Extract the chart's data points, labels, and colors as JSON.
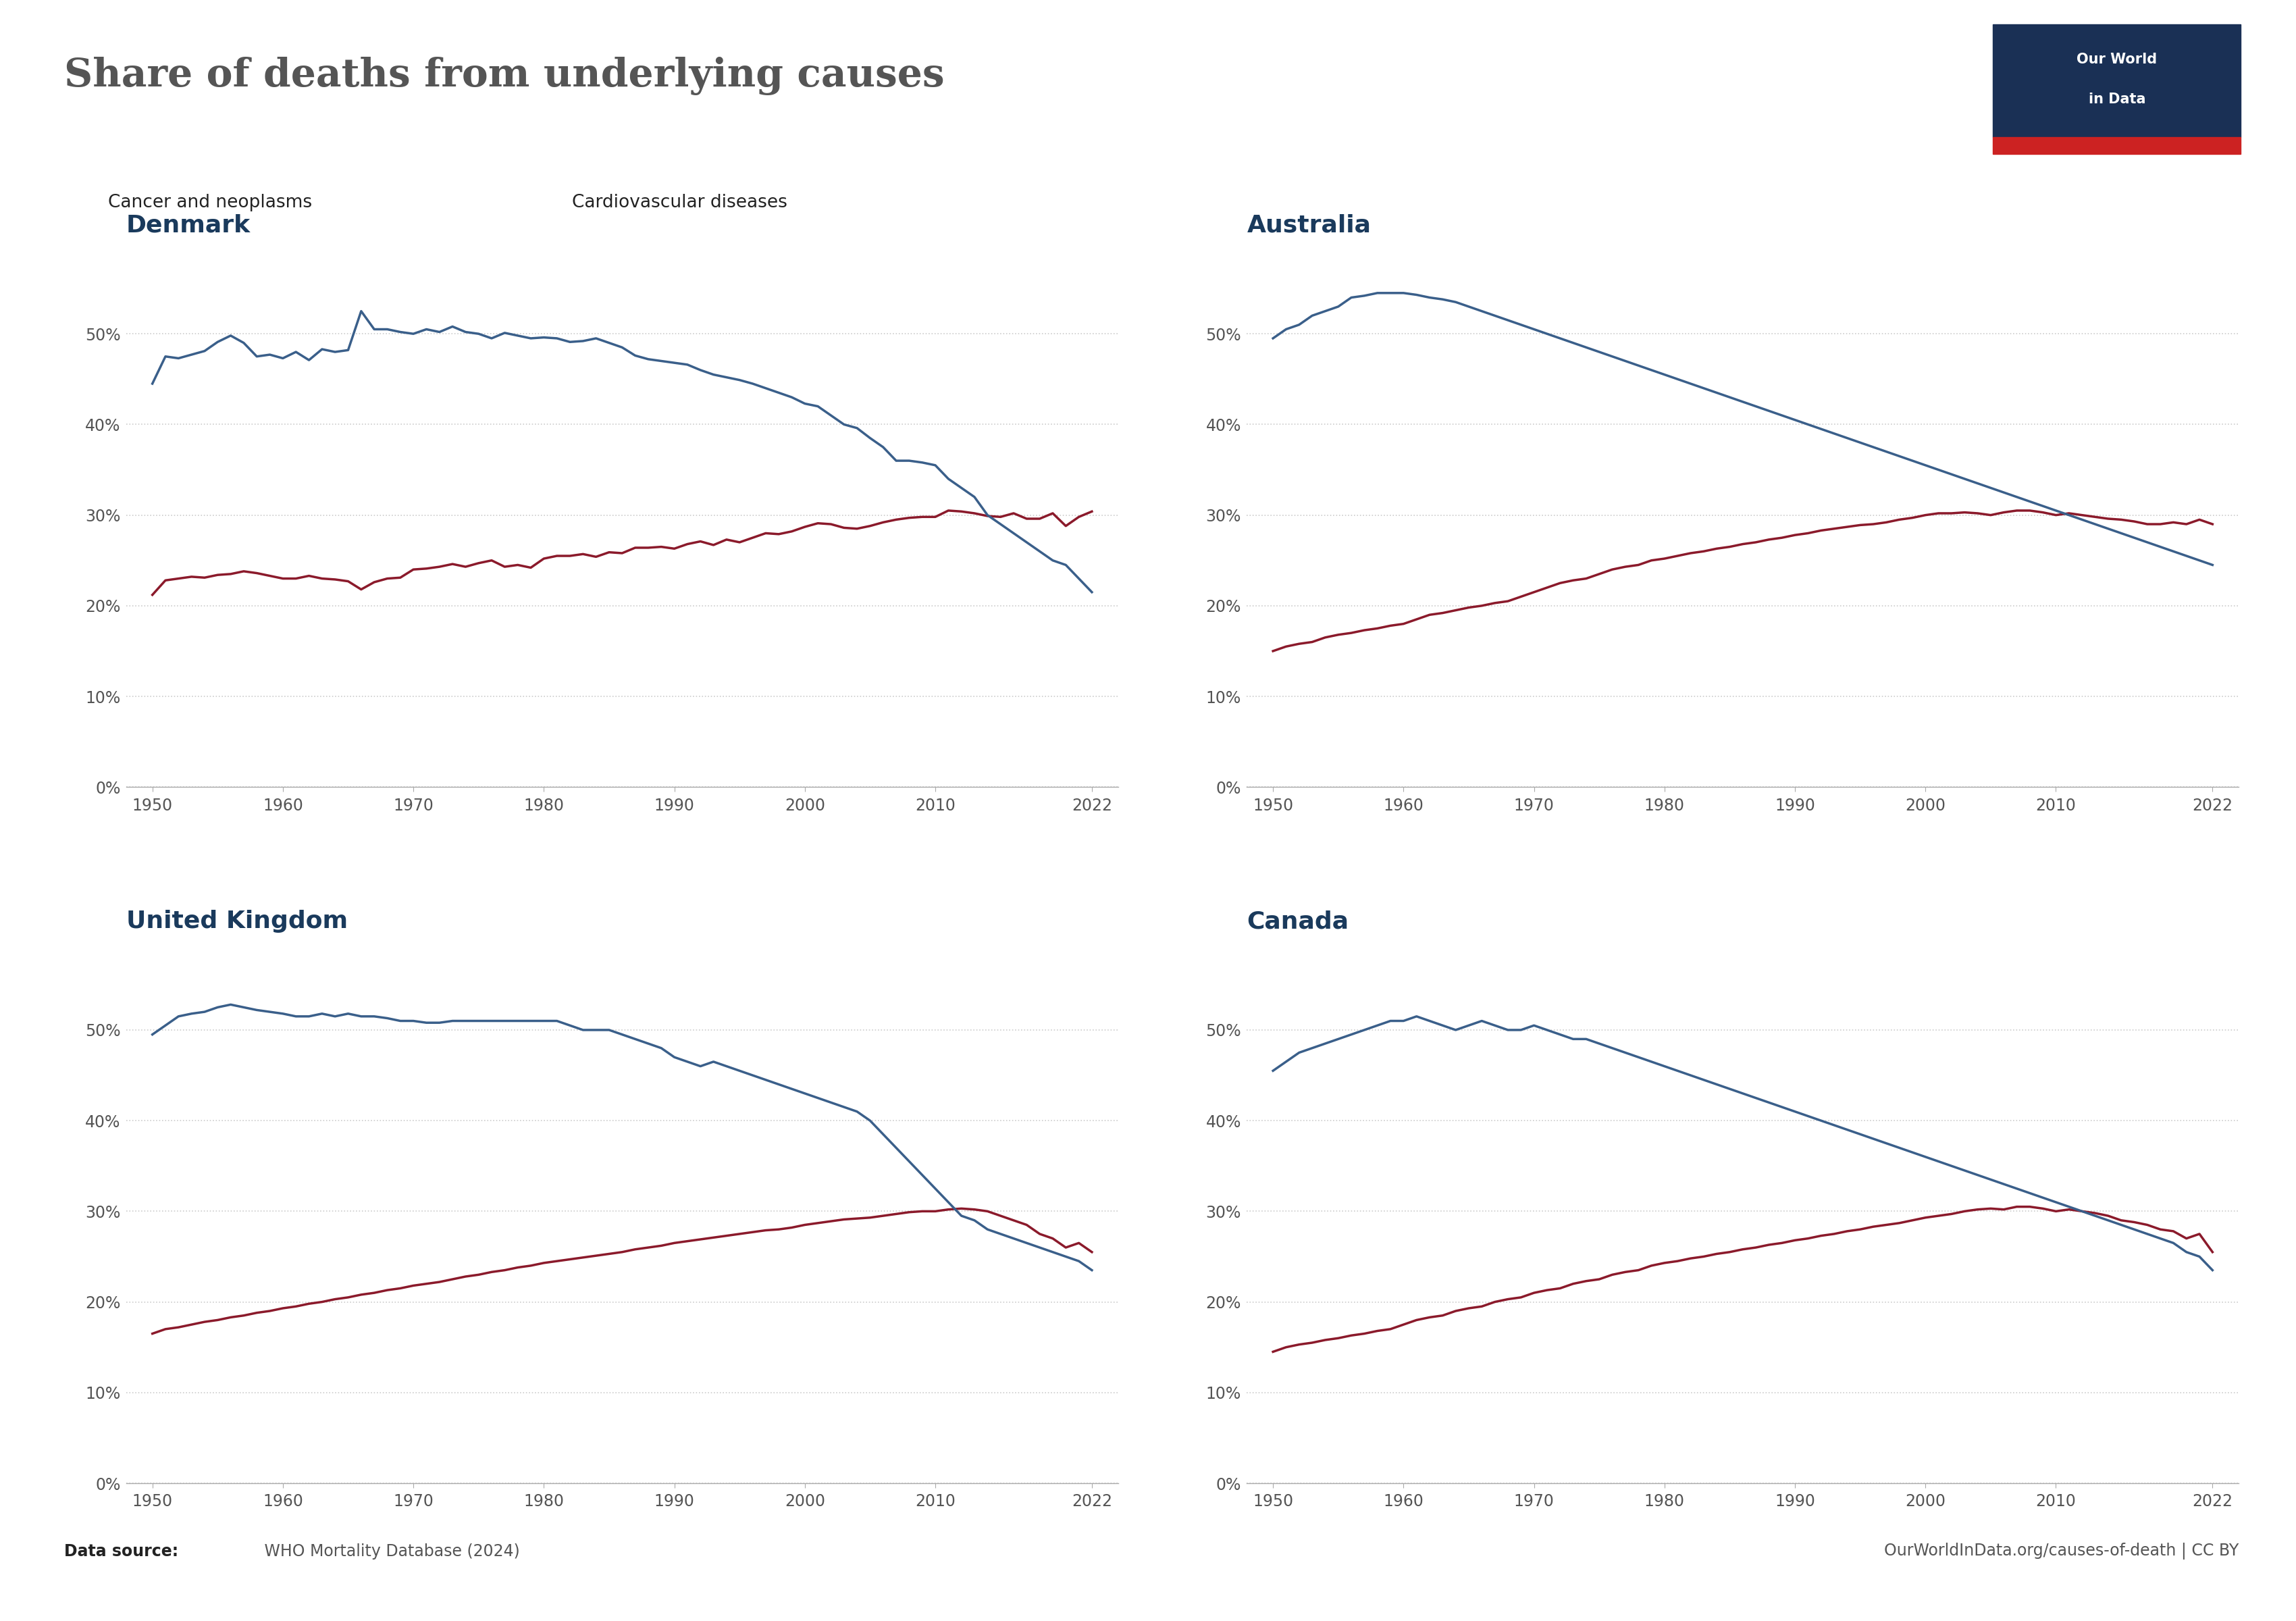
{
  "title": "Share of deaths from underlying causes",
  "title_color": "#555555",
  "cancer_color": "#8B1A2B",
  "cardio_color": "#3A5F8A",
  "background_color": "#ffffff",
  "grid_color": "#cccccc",
  "legend_cancer": "Cancer and neoplasms",
  "legend_cardio": "Cardiovascular diseases",
  "source_bold": "Data source:",
  "source_rest": " WHO Mortality Database (2024)",
  "owid_text": "OurWorldInData.org/causes-of-death | CC BY",
  "owid_bg": "#1a3055",
  "owid_red": "#CC2222",
  "subplots": [
    {
      "title": "Denmark",
      "cancer_years": [
        1950,
        1951,
        1952,
        1953,
        1954,
        1955,
        1956,
        1957,
        1958,
        1959,
        1960,
        1961,
        1962,
        1963,
        1964,
        1965,
        1966,
        1967,
        1968,
        1969,
        1970,
        1971,
        1972,
        1973,
        1974,
        1975,
        1976,
        1977,
        1978,
        1979,
        1980,
        1981,
        1982,
        1983,
        1984,
        1985,
        1986,
        1987,
        1988,
        1989,
        1990,
        1991,
        1992,
        1993,
        1994,
        1995,
        1996,
        1997,
        1998,
        1999,
        2000,
        2001,
        2002,
        2003,
        2004,
        2005,
        2006,
        2007,
        2008,
        2009,
        2010,
        2011,
        2012,
        2013,
        2014,
        2015,
        2016,
        2017,
        2018,
        2019,
        2020,
        2021,
        2022
      ],
      "cancer_vals": [
        21.2,
        22.8,
        23.0,
        23.2,
        23.1,
        23.4,
        23.5,
        23.8,
        23.6,
        23.3,
        23.0,
        23.0,
        23.3,
        23.0,
        22.9,
        22.7,
        21.8,
        22.6,
        23.0,
        23.1,
        24.0,
        24.1,
        24.3,
        24.6,
        24.3,
        24.7,
        25.0,
        24.3,
        24.5,
        24.2,
        25.2,
        25.5,
        25.5,
        25.7,
        25.4,
        25.9,
        25.8,
        26.4,
        26.4,
        26.5,
        26.3,
        26.8,
        27.1,
        26.7,
        27.3,
        27.0,
        27.5,
        28.0,
        27.9,
        28.2,
        28.7,
        29.1,
        29.0,
        28.6,
        28.5,
        28.8,
        29.2,
        29.5,
        29.7,
        29.8,
        29.8,
        30.5,
        30.4,
        30.2,
        29.9,
        29.8,
        30.2,
        29.6,
        29.6,
        30.2,
        28.8,
        29.8,
        30.4
      ],
      "cardio_years": [
        1950,
        1951,
        1952,
        1953,
        1954,
        1955,
        1956,
        1957,
        1958,
        1959,
        1960,
        1961,
        1962,
        1963,
        1964,
        1965,
        1966,
        1967,
        1968,
        1969,
        1970,
        1971,
        1972,
        1973,
        1974,
        1975,
        1976,
        1977,
        1978,
        1979,
        1980,
        1981,
        1982,
        1983,
        1984,
        1985,
        1986,
        1987,
        1988,
        1989,
        1990,
        1991,
        1992,
        1993,
        1994,
        1995,
        1996,
        1997,
        1998,
        1999,
        2000,
        2001,
        2002,
        2003,
        2004,
        2005,
        2006,
        2007,
        2008,
        2009,
        2010,
        2011,
        2012,
        2013,
        2014,
        2015,
        2016,
        2017,
        2018,
        2019,
        2020,
        2021,
        2022
      ],
      "cardio_vals": [
        44.5,
        47.5,
        47.3,
        47.7,
        48.1,
        49.1,
        49.8,
        49.0,
        47.5,
        47.7,
        47.3,
        48.0,
        47.1,
        48.3,
        48.0,
        48.2,
        52.5,
        50.5,
        50.5,
        50.2,
        50.0,
        50.5,
        50.2,
        50.8,
        50.2,
        50.0,
        49.5,
        50.1,
        49.8,
        49.5,
        49.6,
        49.5,
        49.1,
        49.2,
        49.5,
        49.0,
        48.5,
        47.6,
        47.2,
        47.0,
        46.8,
        46.6,
        46.0,
        45.5,
        45.2,
        44.9,
        44.5,
        44.0,
        43.5,
        43.0,
        42.3,
        42.0,
        41.0,
        40.0,
        39.6,
        38.5,
        37.5,
        36.0,
        36.0,
        35.8,
        35.5,
        34.0,
        33.0,
        32.0,
        30.0,
        29.0,
        28.0,
        27.0,
        26.0,
        25.0,
        24.5,
        23.0,
        21.5
      ]
    },
    {
      "title": "Australia",
      "cancer_years": [
        1950,
        1951,
        1952,
        1953,
        1954,
        1955,
        1956,
        1957,
        1958,
        1959,
        1960,
        1961,
        1962,
        1963,
        1964,
        1965,
        1966,
        1967,
        1968,
        1969,
        1970,
        1971,
        1972,
        1973,
        1974,
        1975,
        1976,
        1977,
        1978,
        1979,
        1980,
        1981,
        1982,
        1983,
        1984,
        1985,
        1986,
        1987,
        1988,
        1989,
        1990,
        1991,
        1992,
        1993,
        1994,
        1995,
        1996,
        1997,
        1998,
        1999,
        2000,
        2001,
        2002,
        2003,
        2004,
        2005,
        2006,
        2007,
        2008,
        2009,
        2010,
        2011,
        2012,
        2013,
        2014,
        2015,
        2016,
        2017,
        2018,
        2019,
        2020,
        2021,
        2022
      ],
      "cancer_vals": [
        15.0,
        15.5,
        15.8,
        16.0,
        16.5,
        16.8,
        17.0,
        17.3,
        17.5,
        17.8,
        18.0,
        18.5,
        19.0,
        19.2,
        19.5,
        19.8,
        20.0,
        20.3,
        20.5,
        21.0,
        21.5,
        22.0,
        22.5,
        22.8,
        23.0,
        23.5,
        24.0,
        24.3,
        24.5,
        25.0,
        25.2,
        25.5,
        25.8,
        26.0,
        26.3,
        26.5,
        26.8,
        27.0,
        27.3,
        27.5,
        27.8,
        28.0,
        28.3,
        28.5,
        28.7,
        28.9,
        29.0,
        29.2,
        29.5,
        29.7,
        30.0,
        30.2,
        30.2,
        30.3,
        30.2,
        30.0,
        30.3,
        30.5,
        30.5,
        30.3,
        30.0,
        30.2,
        30.0,
        29.8,
        29.6,
        29.5,
        29.3,
        29.0,
        29.0,
        29.2,
        29.0,
        29.5,
        29.0
      ],
      "cardio_years": [
        1950,
        1951,
        1952,
        1953,
        1954,
        1955,
        1956,
        1957,
        1958,
        1959,
        1960,
        1961,
        1962,
        1963,
        1964,
        1965,
        1966,
        1967,
        1968,
        1969,
        1970,
        1971,
        1972,
        1973,
        1974,
        1975,
        1976,
        1977,
        1978,
        1979,
        1980,
        1981,
        1982,
        1983,
        1984,
        1985,
        1986,
        1987,
        1988,
        1989,
        1990,
        1991,
        1992,
        1993,
        1994,
        1995,
        1996,
        1997,
        1998,
        1999,
        2000,
        2001,
        2002,
        2003,
        2004,
        2005,
        2006,
        2007,
        2008,
        2009,
        2010,
        2011,
        2012,
        2013,
        2014,
        2015,
        2016,
        2017,
        2018,
        2019,
        2020,
        2021,
        2022
      ],
      "cardio_vals": [
        49.5,
        50.5,
        51.0,
        52.0,
        52.5,
        53.0,
        54.0,
        54.2,
        54.5,
        54.5,
        54.5,
        54.3,
        54.0,
        53.8,
        53.5,
        53.0,
        52.5,
        52.0,
        51.5,
        51.0,
        50.5,
        50.0,
        49.5,
        49.0,
        48.5,
        48.0,
        47.5,
        47.0,
        46.5,
        46.0,
        45.5,
        45.0,
        44.5,
        44.0,
        43.5,
        43.0,
        42.5,
        42.0,
        41.5,
        41.0,
        40.5,
        40.0,
        39.5,
        39.0,
        38.5,
        38.0,
        37.5,
        37.0,
        36.5,
        36.0,
        35.5,
        35.0,
        34.5,
        34.0,
        33.5,
        33.0,
        32.5,
        32.0,
        31.5,
        31.0,
        30.5,
        30.0,
        29.5,
        29.0,
        28.5,
        28.0,
        27.5,
        27.0,
        26.5,
        26.0,
        25.5,
        25.0,
        24.5
      ]
    },
    {
      "title": "United Kingdom",
      "cancer_years": [
        1950,
        1951,
        1952,
        1953,
        1954,
        1955,
        1956,
        1957,
        1958,
        1959,
        1960,
        1961,
        1962,
        1963,
        1964,
        1965,
        1966,
        1967,
        1968,
        1969,
        1970,
        1971,
        1972,
        1973,
        1974,
        1975,
        1976,
        1977,
        1978,
        1979,
        1980,
        1981,
        1982,
        1983,
        1984,
        1985,
        1986,
        1987,
        1988,
        1989,
        1990,
        1991,
        1992,
        1993,
        1994,
        1995,
        1996,
        1997,
        1998,
        1999,
        2000,
        2001,
        2002,
        2003,
        2004,
        2005,
        2006,
        2007,
        2008,
        2009,
        2010,
        2011,
        2012,
        2013,
        2014,
        2015,
        2016,
        2017,
        2018,
        2019,
        2020,
        2021,
        2022
      ],
      "cancer_vals": [
        16.5,
        17.0,
        17.2,
        17.5,
        17.8,
        18.0,
        18.3,
        18.5,
        18.8,
        19.0,
        19.3,
        19.5,
        19.8,
        20.0,
        20.3,
        20.5,
        20.8,
        21.0,
        21.3,
        21.5,
        21.8,
        22.0,
        22.2,
        22.5,
        22.8,
        23.0,
        23.3,
        23.5,
        23.8,
        24.0,
        24.3,
        24.5,
        24.7,
        24.9,
        25.1,
        25.3,
        25.5,
        25.8,
        26.0,
        26.2,
        26.5,
        26.7,
        26.9,
        27.1,
        27.3,
        27.5,
        27.7,
        27.9,
        28.0,
        28.2,
        28.5,
        28.7,
        28.9,
        29.1,
        29.2,
        29.3,
        29.5,
        29.7,
        29.9,
        30.0,
        30.0,
        30.2,
        30.3,
        30.2,
        30.0,
        29.5,
        29.0,
        28.5,
        27.5,
        27.0,
        26.0,
        26.5,
        25.5
      ],
      "cardio_years": [
        1950,
        1951,
        1952,
        1953,
        1954,
        1955,
        1956,
        1957,
        1958,
        1959,
        1960,
        1961,
        1962,
        1963,
        1964,
        1965,
        1966,
        1967,
        1968,
        1969,
        1970,
        1971,
        1972,
        1973,
        1974,
        1975,
        1976,
        1977,
        1978,
        1979,
        1980,
        1981,
        1982,
        1983,
        1984,
        1985,
        1986,
        1987,
        1988,
        1989,
        1990,
        1991,
        1992,
        1993,
        1994,
        1995,
        1996,
        1997,
        1998,
        1999,
        2000,
        2001,
        2002,
        2003,
        2004,
        2005,
        2006,
        2007,
        2008,
        2009,
        2010,
        2011,
        2012,
        2013,
        2014,
        2015,
        2016,
        2017,
        2018,
        2019,
        2020,
        2021,
        2022
      ],
      "cardio_vals": [
        49.5,
        50.5,
        51.5,
        51.8,
        52.0,
        52.5,
        52.8,
        52.5,
        52.2,
        52.0,
        51.8,
        51.5,
        51.5,
        51.8,
        51.5,
        51.8,
        51.5,
        51.5,
        51.3,
        51.0,
        51.0,
        50.8,
        50.8,
        51.0,
        51.0,
        51.0,
        51.0,
        51.0,
        51.0,
        51.0,
        51.0,
        51.0,
        50.5,
        50.0,
        50.0,
        50.0,
        49.5,
        49.0,
        48.5,
        48.0,
        47.0,
        46.5,
        46.0,
        46.5,
        46.0,
        45.5,
        45.0,
        44.5,
        44.0,
        43.5,
        43.0,
        42.5,
        42.0,
        41.5,
        41.0,
        40.0,
        38.5,
        37.0,
        35.5,
        34.0,
        32.5,
        31.0,
        29.5,
        29.0,
        28.0,
        27.5,
        27.0,
        26.5,
        26.0,
        25.5,
        25.0,
        24.5,
        23.5
      ]
    },
    {
      "title": "Canada",
      "cancer_years": [
        1950,
        1951,
        1952,
        1953,
        1954,
        1955,
        1956,
        1957,
        1958,
        1959,
        1960,
        1961,
        1962,
        1963,
        1964,
        1965,
        1966,
        1967,
        1968,
        1969,
        1970,
        1971,
        1972,
        1973,
        1974,
        1975,
        1976,
        1977,
        1978,
        1979,
        1980,
        1981,
        1982,
        1983,
        1984,
        1985,
        1986,
        1987,
        1988,
        1989,
        1990,
        1991,
        1992,
        1993,
        1994,
        1995,
        1996,
        1997,
        1998,
        1999,
        2000,
        2001,
        2002,
        2003,
        2004,
        2005,
        2006,
        2007,
        2008,
        2009,
        2010,
        2011,
        2012,
        2013,
        2014,
        2015,
        2016,
        2017,
        2018,
        2019,
        2020,
        2021,
        2022
      ],
      "cancer_vals": [
        14.5,
        15.0,
        15.3,
        15.5,
        15.8,
        16.0,
        16.3,
        16.5,
        16.8,
        17.0,
        17.5,
        18.0,
        18.3,
        18.5,
        19.0,
        19.3,
        19.5,
        20.0,
        20.3,
        20.5,
        21.0,
        21.3,
        21.5,
        22.0,
        22.3,
        22.5,
        23.0,
        23.3,
        23.5,
        24.0,
        24.3,
        24.5,
        24.8,
        25.0,
        25.3,
        25.5,
        25.8,
        26.0,
        26.3,
        26.5,
        26.8,
        27.0,
        27.3,
        27.5,
        27.8,
        28.0,
        28.3,
        28.5,
        28.7,
        29.0,
        29.3,
        29.5,
        29.7,
        30.0,
        30.2,
        30.3,
        30.2,
        30.5,
        30.5,
        30.3,
        30.0,
        30.2,
        30.0,
        29.8,
        29.5,
        29.0,
        28.8,
        28.5,
        28.0,
        27.8,
        27.0,
        27.5,
        25.5
      ],
      "cardio_years": [
        1950,
        1951,
        1952,
        1953,
        1954,
        1955,
        1956,
        1957,
        1958,
        1959,
        1960,
        1961,
        1962,
        1963,
        1964,
        1965,
        1966,
        1967,
        1968,
        1969,
        1970,
        1971,
        1972,
        1973,
        1974,
        1975,
        1976,
        1977,
        1978,
        1979,
        1980,
        1981,
        1982,
        1983,
        1984,
        1985,
        1986,
        1987,
        1988,
        1989,
        1990,
        1991,
        1992,
        1993,
        1994,
        1995,
        1996,
        1997,
        1998,
        1999,
        2000,
        2001,
        2002,
        2003,
        2004,
        2005,
        2006,
        2007,
        2008,
        2009,
        2010,
        2011,
        2012,
        2013,
        2014,
        2015,
        2016,
        2017,
        2018,
        2019,
        2020,
        2021,
        2022
      ],
      "cardio_vals": [
        45.5,
        46.5,
        47.5,
        48.0,
        48.5,
        49.0,
        49.5,
        50.0,
        50.5,
        51.0,
        51.0,
        51.5,
        51.0,
        50.5,
        50.0,
        50.5,
        51.0,
        50.5,
        50.0,
        50.0,
        50.5,
        50.0,
        49.5,
        49.0,
        49.0,
        48.5,
        48.0,
        47.5,
        47.0,
        46.5,
        46.0,
        45.5,
        45.0,
        44.5,
        44.0,
        43.5,
        43.0,
        42.5,
        42.0,
        41.5,
        41.0,
        40.5,
        40.0,
        39.5,
        39.0,
        38.5,
        38.0,
        37.5,
        37.0,
        36.5,
        36.0,
        35.5,
        35.0,
        34.5,
        34.0,
        33.5,
        33.0,
        32.5,
        32.0,
        31.5,
        31.0,
        30.5,
        30.0,
        29.5,
        29.0,
        28.5,
        28.0,
        27.5,
        27.0,
        26.5,
        25.5,
        25.0,
        23.5
      ]
    }
  ]
}
